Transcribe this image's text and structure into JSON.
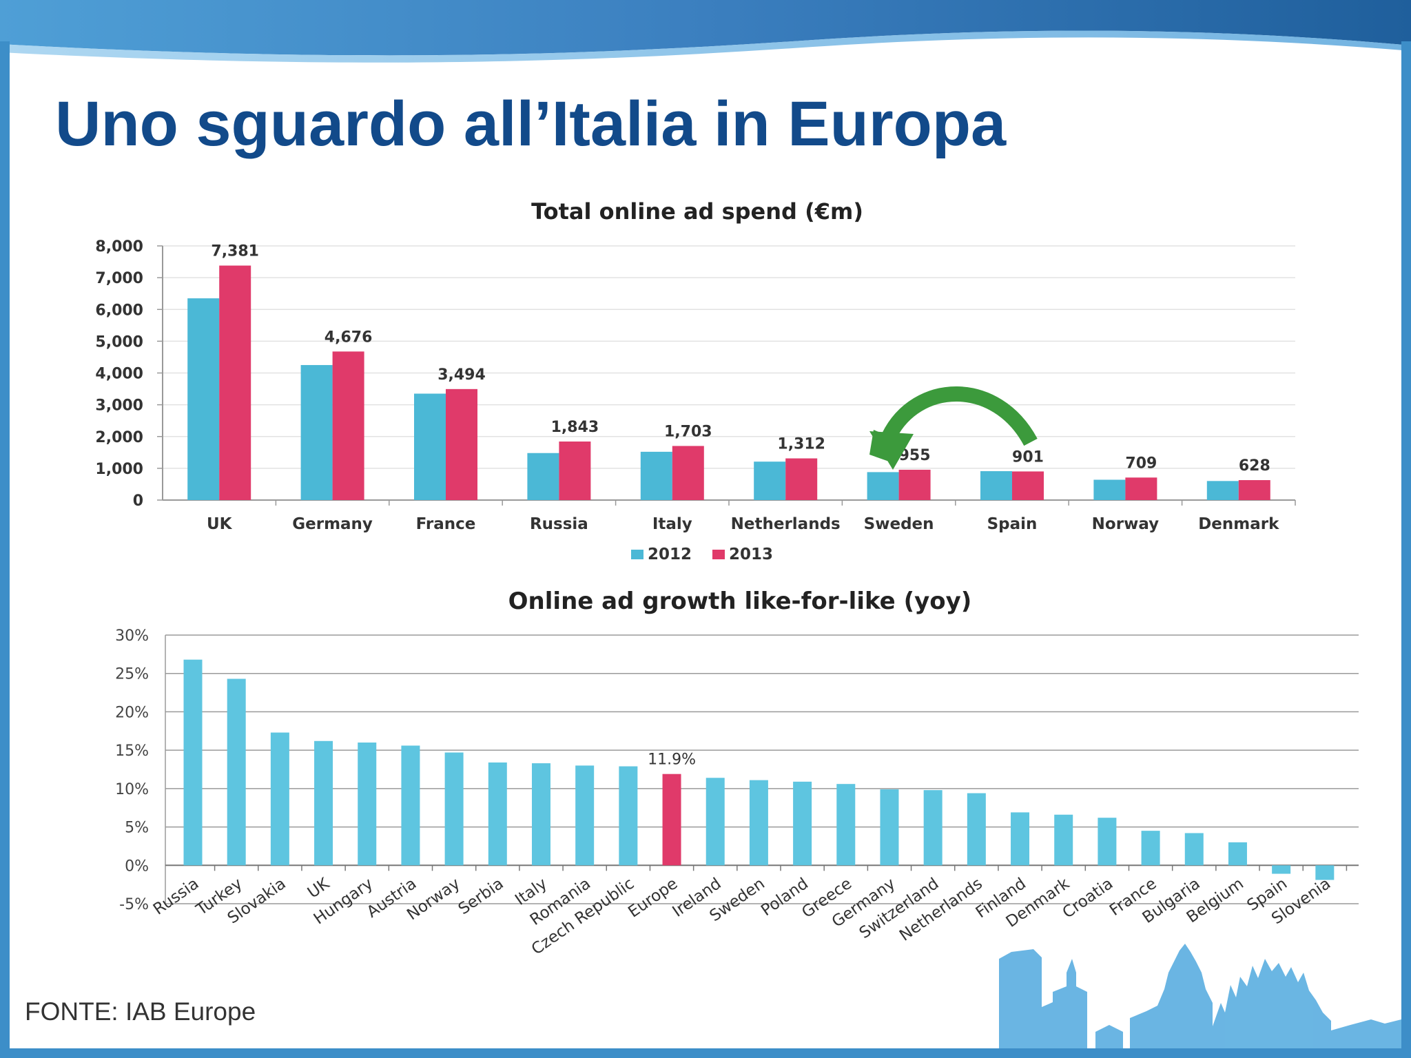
{
  "slide": {
    "title": "Uno sguardo all’Italia in Europa",
    "source": "FONTE: IAB Europe"
  },
  "colors": {
    "title": "#124a8a",
    "series_2012": "#4bb8d6",
    "series_2013": "#e03a6a",
    "growth_bar": "#5ec5e0",
    "growth_highlight": "#e03a6a",
    "arrow": "#3c9a3c",
    "frame": "#3d8ec8"
  },
  "chart_data": [
    {
      "type": "bar",
      "title": "Total online ad spend (€m)",
      "categories": [
        "UK",
        "Germany",
        "France",
        "Russia",
        "Italy",
        "Netherlands",
        "Sweden",
        "Spain",
        "Norway",
        "Denmark"
      ],
      "series": [
        {
          "name": "2012",
          "values": [
            6350,
            4250,
            3350,
            1480,
            1520,
            1210,
            880,
            910,
            640,
            600
          ]
        },
        {
          "name": "2013",
          "values": [
            7381,
            4676,
            3494,
            1843,
            1703,
            1312,
            955,
            901,
            709,
            628
          ]
        }
      ],
      "data_labels": [
        "7,381",
        "4,676",
        "3,494",
        "1,843",
        "1,703",
        "1,312",
        "955",
        "901",
        "709",
        "628"
      ],
      "ylim": [
        0,
        8000
      ],
      "yticks": [
        "0",
        "1,000",
        "2,000",
        "3,000",
        "4,000",
        "5,000",
        "6,000",
        "7,000",
        "8,000"
      ],
      "grid": true,
      "legend": "bottom",
      "annotations": [
        "arrow-from-spain-to-sweden"
      ]
    },
    {
      "type": "bar",
      "title": "Online ad growth like-for-like (yoy)",
      "categories": [
        "Russia",
        "Turkey",
        "Slovakia",
        "UK",
        "Hungary",
        "Austria",
        "Norway",
        "Serbia",
        "Italy",
        "Romania",
        "Czech Republic",
        "Europe",
        "Ireland",
        "Sweden",
        "Poland",
        "Greece",
        "Germany",
        "Switzerland",
        "Netherlands",
        "Finland",
        "Denmark",
        "Croatia",
        "France",
        "Bulgaria",
        "Belgium",
        "Spain",
        "Slovenia"
      ],
      "values": [
        26.8,
        24.3,
        17.3,
        16.2,
        16.0,
        15.6,
        14.7,
        13.4,
        13.3,
        13.0,
        12.9,
        11.9,
        11.4,
        11.1,
        10.9,
        10.6,
        9.9,
        9.8,
        9.4,
        6.9,
        6.6,
        6.2,
        4.5,
        4.2,
        3.0,
        -1.1,
        -1.9
      ],
      "highlight": "Europe",
      "data_label": "11.9%",
      "ylim": [
        -5,
        30
      ],
      "yticks": [
        "-5%",
        "0%",
        "5%",
        "10%",
        "15%",
        "20%",
        "25%",
        "30%"
      ],
      "grid": true
    }
  ]
}
